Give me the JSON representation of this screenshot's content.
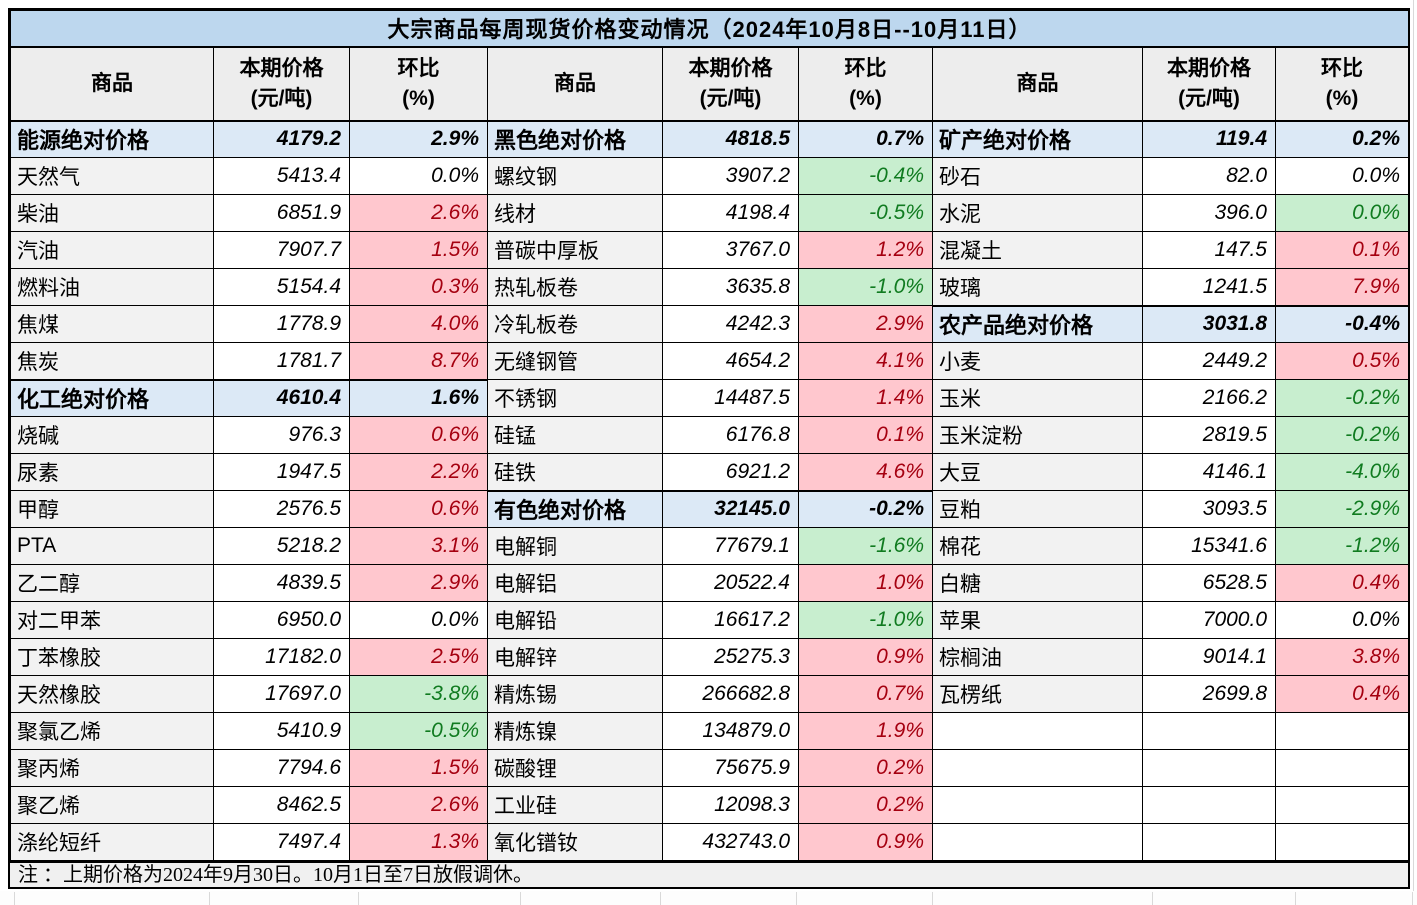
{
  "title": "大宗商品每周现货价格变动情况（2024年10月8日--10月11日）",
  "columns": {
    "commodity": "商品",
    "price_line1": "本期价格",
    "price_line2": "(元/吨)",
    "change_line1": "环比",
    "change_line2": "(%)"
  },
  "note": "注 ：上期价格为2024年9月30日。10月1日至7日放假调休。",
  "colors": {
    "title_bg": "#BDD7EE",
    "section_bg": "#DCE9F6",
    "header_bg": "#EDEDED",
    "name_cell_bg": "#F2F2F2",
    "increase_bg": "#FFC7CE",
    "increase_text": "#A50010",
    "decrease_bg": "#C8EECF",
    "decrease_text": "#107B20"
  },
  "groups": [
    {
      "rows": [
        {
          "name": "能源绝对价格",
          "price": "4179.2",
          "change": "2.9%",
          "kind": "section"
        },
        {
          "name": "天然气",
          "price": "5413.4",
          "change": "0.0%",
          "kind": "flat"
        },
        {
          "name": "柴油",
          "price": "6851.9",
          "change": "2.6%",
          "kind": "up"
        },
        {
          "name": "汽油",
          "price": "7907.7",
          "change": "1.5%",
          "kind": "up"
        },
        {
          "name": "燃料油",
          "price": "5154.4",
          "change": "0.3%",
          "kind": "up"
        },
        {
          "name": "焦煤",
          "price": "1778.9",
          "change": "4.0%",
          "kind": "up"
        },
        {
          "name": "焦炭",
          "price": "1781.7",
          "change": "8.7%",
          "kind": "up"
        },
        {
          "name": "化工绝对价格",
          "price": "4610.4",
          "change": "1.6%",
          "kind": "section"
        },
        {
          "name": "烧碱",
          "price": "976.3",
          "change": "0.6%",
          "kind": "up"
        },
        {
          "name": "尿素",
          "price": "1947.5",
          "change": "2.2%",
          "kind": "up"
        },
        {
          "name": "甲醇",
          "price": "2576.5",
          "change": "0.6%",
          "kind": "up"
        },
        {
          "name": "PTA",
          "price": "5218.2",
          "change": "3.1%",
          "kind": "up"
        },
        {
          "name": "乙二醇",
          "price": "4839.5",
          "change": "2.9%",
          "kind": "up"
        },
        {
          "name": "对二甲苯",
          "price": "6950.0",
          "change": "0.0%",
          "kind": "flat"
        },
        {
          "name": "丁苯橡胶",
          "price": "17182.0",
          "change": "2.5%",
          "kind": "up"
        },
        {
          "name": "天然橡胶",
          "price": "17697.0",
          "change": "-3.8%",
          "kind": "down"
        },
        {
          "name": "聚氯乙烯",
          "price": "5410.9",
          "change": "-0.5%",
          "kind": "down"
        },
        {
          "name": "聚丙烯",
          "price": "7794.6",
          "change": "1.5%",
          "kind": "up"
        },
        {
          "name": "聚乙烯",
          "price": "8462.5",
          "change": "2.6%",
          "kind": "up"
        },
        {
          "name": "涤纶短纤",
          "price": "7497.4",
          "change": "1.3%",
          "kind": "up"
        }
      ]
    },
    {
      "rows": [
        {
          "name": "黑色绝对价格",
          "price": "4818.5",
          "change": "0.7%",
          "kind": "section"
        },
        {
          "name": "螺纹钢",
          "price": "3907.2",
          "change": "-0.4%",
          "kind": "down"
        },
        {
          "name": "线材",
          "price": "4198.4",
          "change": "-0.5%",
          "kind": "down"
        },
        {
          "name": "普碳中厚板",
          "price": "3767.0",
          "change": "1.2%",
          "kind": "up"
        },
        {
          "name": "热轧板卷",
          "price": "3635.8",
          "change": "-1.0%",
          "kind": "down"
        },
        {
          "name": "冷轧板卷",
          "price": "4242.3",
          "change": "2.9%",
          "kind": "up"
        },
        {
          "name": "无缝钢管",
          "price": "4654.2",
          "change": "4.1%",
          "kind": "up"
        },
        {
          "name": "不锈钢",
          "price": "14487.5",
          "change": "1.4%",
          "kind": "up"
        },
        {
          "name": "硅锰",
          "price": "6176.8",
          "change": "0.1%",
          "kind": "up"
        },
        {
          "name": "硅铁",
          "price": "6921.2",
          "change": "4.6%",
          "kind": "up"
        },
        {
          "name": "有色绝对价格",
          "price": "32145.0",
          "change": "-0.2%",
          "kind": "section"
        },
        {
          "name": "电解铜",
          "price": "77679.1",
          "change": "-1.6%",
          "kind": "down"
        },
        {
          "name": "电解铝",
          "price": "20522.4",
          "change": "1.0%",
          "kind": "up"
        },
        {
          "name": "电解铅",
          "price": "16617.2",
          "change": "-1.0%",
          "kind": "down"
        },
        {
          "name": "电解锌",
          "price": "25275.3",
          "change": "0.9%",
          "kind": "up"
        },
        {
          "name": "精炼锡",
          "price": "266682.8",
          "change": "0.7%",
          "kind": "up"
        },
        {
          "name": "精炼镍",
          "price": "134879.0",
          "change": "1.9%",
          "kind": "up"
        },
        {
          "name": "碳酸锂",
          "price": "75675.9",
          "change": "0.2%",
          "kind": "up"
        },
        {
          "name": "工业硅",
          "price": "12098.3",
          "change": "0.2%",
          "kind": "up"
        },
        {
          "name": "氧化镨钕",
          "price": "432743.0",
          "change": "0.9%",
          "kind": "up"
        }
      ]
    },
    {
      "rows": [
        {
          "name": "矿产绝对价格",
          "price": "119.4",
          "change": "0.2%",
          "kind": "section"
        },
        {
          "name": "砂石",
          "price": "82.0",
          "change": "0.0%",
          "kind": "flat"
        },
        {
          "name": "水泥",
          "price": "396.0",
          "change": "0.0%",
          "kind": "down"
        },
        {
          "name": "混凝土",
          "price": "147.5",
          "change": "0.1%",
          "kind": "up"
        },
        {
          "name": "玻璃",
          "price": "1241.5",
          "change": "7.9%",
          "kind": "up"
        },
        {
          "name": "农产品绝对价格",
          "price": "3031.8",
          "change": "-0.4%",
          "kind": "section"
        },
        {
          "name": "小麦",
          "price": "2449.2",
          "change": "0.5%",
          "kind": "up"
        },
        {
          "name": "玉米",
          "price": "2166.2",
          "change": "-0.2%",
          "kind": "down"
        },
        {
          "name": "玉米淀粉",
          "price": "2819.5",
          "change": "-0.2%",
          "kind": "down"
        },
        {
          "name": "大豆",
          "price": "4146.1",
          "change": "-4.0%",
          "kind": "down"
        },
        {
          "name": "豆粕",
          "price": "3093.5",
          "change": "-2.9%",
          "kind": "down"
        },
        {
          "name": "棉花",
          "price": "15341.6",
          "change": "-1.2%",
          "kind": "down"
        },
        {
          "name": "白糖",
          "price": "6528.5",
          "change": "0.4%",
          "kind": "up"
        },
        {
          "name": "苹果",
          "price": "7000.0",
          "change": "0.0%",
          "kind": "flat"
        },
        {
          "name": "棕榈油",
          "price": "9014.1",
          "change": "3.8%",
          "kind": "up"
        },
        {
          "name": "瓦楞纸",
          "price": "2699.8",
          "change": "0.4%",
          "kind": "up"
        },
        {
          "name": "",
          "price": "",
          "change": "",
          "kind": "empty"
        },
        {
          "name": "",
          "price": "",
          "change": "",
          "kind": "empty"
        },
        {
          "name": "",
          "price": "",
          "change": "",
          "kind": "empty"
        },
        {
          "name": "",
          "price": "",
          "change": "",
          "kind": "empty"
        }
      ]
    }
  ]
}
